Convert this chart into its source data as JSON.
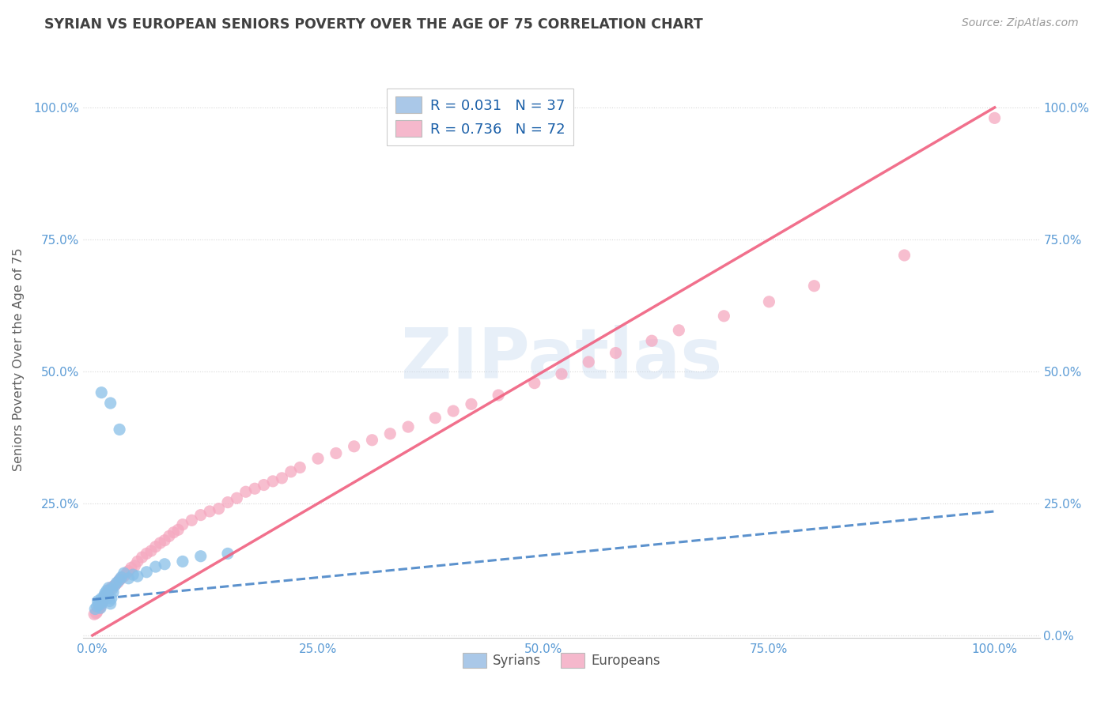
{
  "title": "SYRIAN VS EUROPEAN SENIORS POVERTY OVER THE AGE OF 75 CORRELATION CHART",
  "source": "Source: ZipAtlas.com",
  "ylabel": "Seniors Poverty Over the Age of 75",
  "background_color": "#ffffff",
  "watermark_text": "ZIPatlas",
  "syrian_color": "#89bfe8",
  "european_color": "#f5a8c0",
  "syrian_line_color": "#4a86c8",
  "european_line_color": "#f06080",
  "grid_color": "#d8d8d8",
  "axis_tick_color": "#5b9bd5",
  "title_color": "#404040",
  "source_color": "#999999",
  "ylabel_color": "#606060",
  "legend_text_color": "#1a5fa8",
  "syrian_x": [
    0.003,
    0.005,
    0.006,
    0.007,
    0.008,
    0.009,
    0.01,
    0.011,
    0.012,
    0.013,
    0.014,
    0.015,
    0.016,
    0.017,
    0.018,
    0.019,
    0.02,
    0.021,
    0.022,
    0.023,
    0.025,
    0.027,
    0.03,
    0.032,
    0.035,
    0.04,
    0.045,
    0.05,
    0.06,
    0.07,
    0.08,
    0.1,
    0.12,
    0.15,
    0.03,
    0.02,
    0.01
  ],
  "syrian_y": [
    0.05,
    0.055,
    0.065,
    0.06,
    0.058,
    0.052,
    0.07,
    0.062,
    0.068,
    0.075,
    0.08,
    0.078,
    0.085,
    0.072,
    0.09,
    0.065,
    0.06,
    0.07,
    0.088,
    0.082,
    0.095,
    0.1,
    0.105,
    0.11,
    0.118,
    0.108,
    0.115,
    0.112,
    0.12,
    0.13,
    0.135,
    0.14,
    0.15,
    0.155,
    0.39,
    0.44,
    0.46
  ],
  "european_x": [
    0.002,
    0.004,
    0.005,
    0.006,
    0.007,
    0.008,
    0.009,
    0.01,
    0.011,
    0.012,
    0.013,
    0.014,
    0.015,
    0.016,
    0.017,
    0.018,
    0.02,
    0.022,
    0.025,
    0.028,
    0.03,
    0.032,
    0.035,
    0.038,
    0.04,
    0.043,
    0.047,
    0.05,
    0.055,
    0.06,
    0.065,
    0.07,
    0.075,
    0.08,
    0.085,
    0.09,
    0.095,
    0.1,
    0.11,
    0.12,
    0.13,
    0.14,
    0.15,
    0.16,
    0.17,
    0.18,
    0.19,
    0.2,
    0.21,
    0.22,
    0.23,
    0.25,
    0.27,
    0.29,
    0.31,
    0.33,
    0.35,
    0.38,
    0.4,
    0.42,
    0.45,
    0.49,
    0.52,
    0.55,
    0.58,
    0.62,
    0.65,
    0.7,
    0.75,
    0.8,
    0.9,
    1.0
  ],
  "european_y": [
    0.04,
    0.042,
    0.044,
    0.048,
    0.05,
    0.052,
    0.055,
    0.06,
    0.065,
    0.068,
    0.07,
    0.072,
    0.075,
    0.078,
    0.08,
    0.085,
    0.088,
    0.092,
    0.095,
    0.1,
    0.105,
    0.108,
    0.112,
    0.118,
    0.122,
    0.128,
    0.132,
    0.14,
    0.148,
    0.155,
    0.16,
    0.168,
    0.175,
    0.18,
    0.188,
    0.195,
    0.2,
    0.21,
    0.218,
    0.228,
    0.235,
    0.24,
    0.252,
    0.26,
    0.272,
    0.278,
    0.285,
    0.292,
    0.298,
    0.31,
    0.318,
    0.335,
    0.345,
    0.358,
    0.37,
    0.382,
    0.395,
    0.412,
    0.425,
    0.438,
    0.455,
    0.478,
    0.495,
    0.518,
    0.535,
    0.558,
    0.578,
    0.605,
    0.632,
    0.662,
    0.72,
    0.98
  ],
  "syrian_line_x": [
    0.0,
    1.0
  ],
  "syrian_line_y": [
    0.068,
    0.235
  ],
  "european_line_x": [
    0.0,
    1.0
  ],
  "european_line_y": [
    0.0,
    1.0
  ],
  "xlim": [
    -0.01,
    1.05
  ],
  "ylim": [
    -0.005,
    1.05
  ],
  "xtick_vals": [
    0.0,
    0.25,
    0.5,
    0.75,
    1.0
  ],
  "ytick_vals": [
    0.0,
    0.25,
    0.5,
    0.75,
    1.0
  ],
  "xticklabels": [
    "0.0%",
    "25.0%",
    "50.0%",
    "75.0%",
    "100.0%"
  ],
  "left_yticklabels": [
    "",
    "25.0%",
    "50.0%",
    "75.0%",
    "100.0%"
  ],
  "right_yticklabels": [
    "0.0%",
    "25.0%",
    "50.0%",
    "75.0%",
    "100.0%"
  ]
}
